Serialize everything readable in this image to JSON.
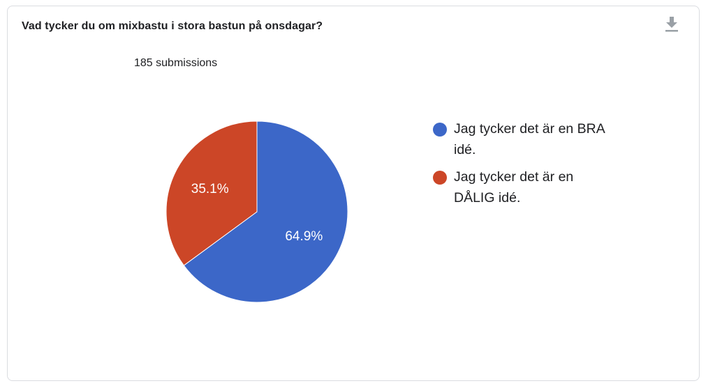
{
  "question": "Vad tycker du om mixbastu i stora bastun på onsdagar?",
  "submissions": "185 submissions",
  "icons": {
    "download": "download-icon"
  },
  "colors": {
    "series": [
      "#3c67c8",
      "#cc4627"
    ],
    "border": "#dadce0",
    "icon": "#9aa0a6"
  },
  "legend_placement": "right",
  "chart_data": {
    "type": "pie",
    "categories": [
      "Jag tycker det är en BRA idé.",
      "Jag tycker det är en DÅLIG idé."
    ],
    "values": [
      64.9,
      35.1
    ],
    "slice_labels": [
      "64.9%",
      "35.1%"
    ]
  }
}
